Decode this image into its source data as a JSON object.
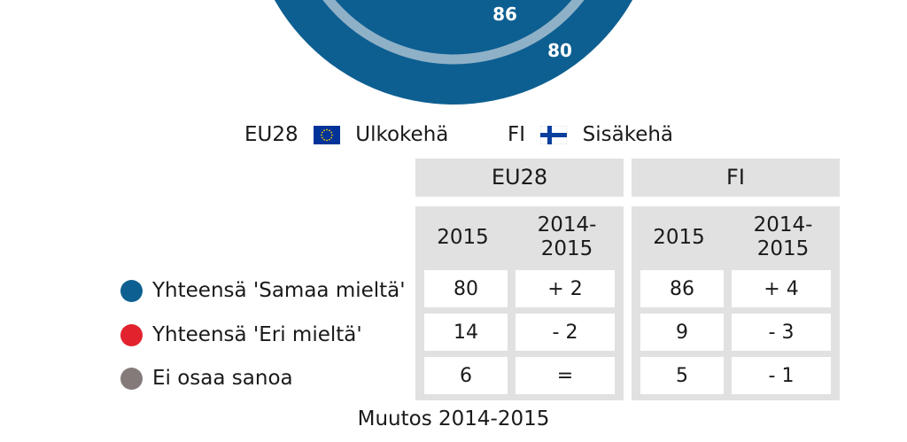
{
  "chart_data": {
    "type": "donut",
    "rings": [
      {
        "name": "EU28",
        "ring_label": "Ulkokehä",
        "values": {
          "agree": 80,
          "disagree": 14,
          "dont_know": 6
        },
        "visible_label": "80"
      },
      {
        "name": "FI",
        "ring_label": "Sisäkehä",
        "values": {
          "agree": 86,
          "disagree": 9,
          "dont_know": 5
        },
        "visible_label": "86"
      }
    ]
  },
  "legend": {
    "eu": {
      "name": "EU28",
      "ring": "Ulkokehä",
      "icon": "eu-flag-icon"
    },
    "fi": {
      "name": "FI",
      "ring": "Sisäkehä",
      "icon": "finland-flag-icon"
    }
  },
  "table": {
    "groups": [
      {
        "name": "EU28",
        "year": "2015",
        "change_line1": "2014-",
        "change_line2": "2015"
      },
      {
        "name": "FI",
        "year": "2015",
        "change_line1": "2014-",
        "change_line2": "2015"
      }
    ],
    "rows": [
      {
        "label": "Yhteensä 'Samaa mieltä'",
        "color": "#0e5f91",
        "eu_2015": "80",
        "eu_change": "+ 2",
        "fi_2015": "86",
        "fi_change": "+ 4"
      },
      {
        "label": "Yhteensä 'Eri mieltä'",
        "color": "#e2232e",
        "eu_2015": "14",
        "eu_change": "- 2",
        "fi_2015": "9",
        "fi_change": "- 3"
      },
      {
        "label": "Ei osaa sanoa",
        "color": "#857a7a",
        "eu_2015": "6",
        "eu_change": "=",
        "fi_2015": "5",
        "fi_change": "- 1"
      }
    ]
  },
  "footer": "Muutos 2014-2015",
  "colors": {
    "outer_ring": "#0e5f91",
    "inner_ring_stroke": "#8fb1c8",
    "panel": "#e1e1e1",
    "eu_blue": "#003399",
    "eu_gold": "#ffcc00",
    "fi_blue": "#0a3f9e"
  }
}
